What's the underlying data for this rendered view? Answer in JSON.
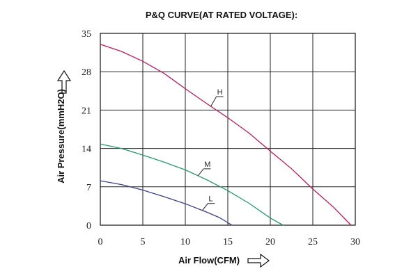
{
  "chart_data": {
    "type": "line",
    "title": "P&Q CURVE(AT RATED VOLTAGE):",
    "xlabel": "Air Flow(CFM)",
    "ylabel": "Air Pressure(mmH2O)",
    "xlim": [
      0,
      30
    ],
    "ylim": [
      0,
      35
    ],
    "xticks": [
      "0",
      "5",
      "10",
      "15",
      "20",
      "25",
      "30"
    ],
    "yticks": [
      "0",
      "7",
      "14",
      "21",
      "28",
      "35"
    ],
    "grid": true,
    "series": [
      {
        "name": "H",
        "color": "#c2185b",
        "x": [
          0,
          2.5,
          5,
          7.5,
          10,
          12.5,
          15,
          17.5,
          20,
          22.5,
          25,
          27.5,
          29.5
        ],
        "y": [
          33,
          31.7,
          29.9,
          27.7,
          24.9,
          22.2,
          19.6,
          16.8,
          13.5,
          10.3,
          6.6,
          3.2,
          0
        ]
      },
      {
        "name": "M",
        "color": "#1f9e6a",
        "x": [
          0,
          2.5,
          5,
          7.5,
          10,
          12.5,
          15,
          17.5,
          20,
          21.5
        ],
        "y": [
          14.8,
          14.0,
          12.8,
          11.5,
          10.1,
          8.3,
          6.3,
          4.0,
          1.3,
          0
        ]
      },
      {
        "name": "L",
        "color": "#3a3f8f",
        "x": [
          0,
          2.5,
          5,
          7.5,
          10,
          12.5,
          14,
          15.5
        ],
        "y": [
          8.1,
          7.4,
          6.4,
          5.2,
          3.9,
          2.4,
          1.4,
          0
        ]
      }
    ]
  }
}
